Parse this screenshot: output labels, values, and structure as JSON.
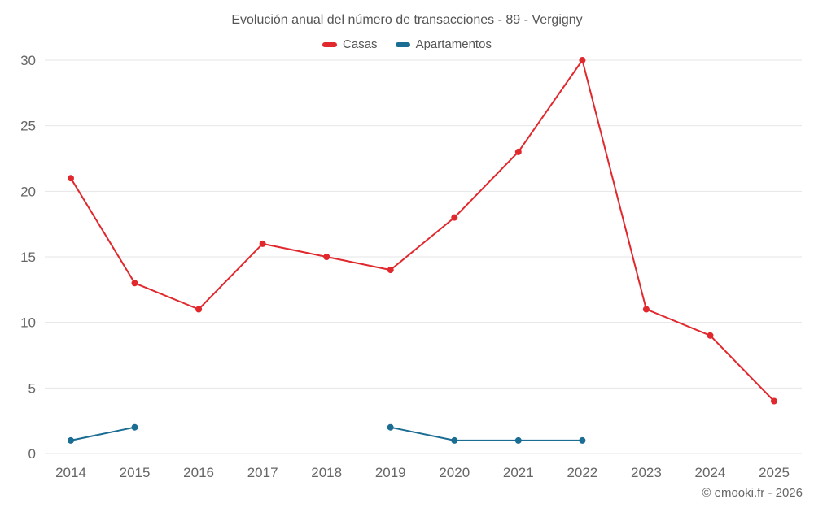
{
  "chart_data": {
    "type": "line",
    "title": "Evolución anual del número de transacciones - 89 - Vergigny",
    "x": [
      2014,
      2015,
      2016,
      2017,
      2018,
      2019,
      2020,
      2021,
      2022,
      2023,
      2024,
      2025
    ],
    "series": [
      {
        "name": "Casas",
        "color": "#e0282d",
        "values": [
          21,
          13,
          11,
          16,
          15,
          14,
          18,
          23,
          30,
          11,
          9,
          4
        ]
      },
      {
        "name": "Apartamentos",
        "color": "#1b6d94",
        "values": [
          1,
          2,
          null,
          null,
          null,
          2,
          1,
          1,
          1,
          null,
          null,
          null
        ]
      }
    ],
    "ylim": [
      0,
      30
    ],
    "yticks": [
      0,
      5,
      10,
      15,
      20,
      25,
      30
    ],
    "grid": true,
    "legend_position": "top"
  },
  "footer": {
    "credits": "© emooki.fr - 2026"
  }
}
